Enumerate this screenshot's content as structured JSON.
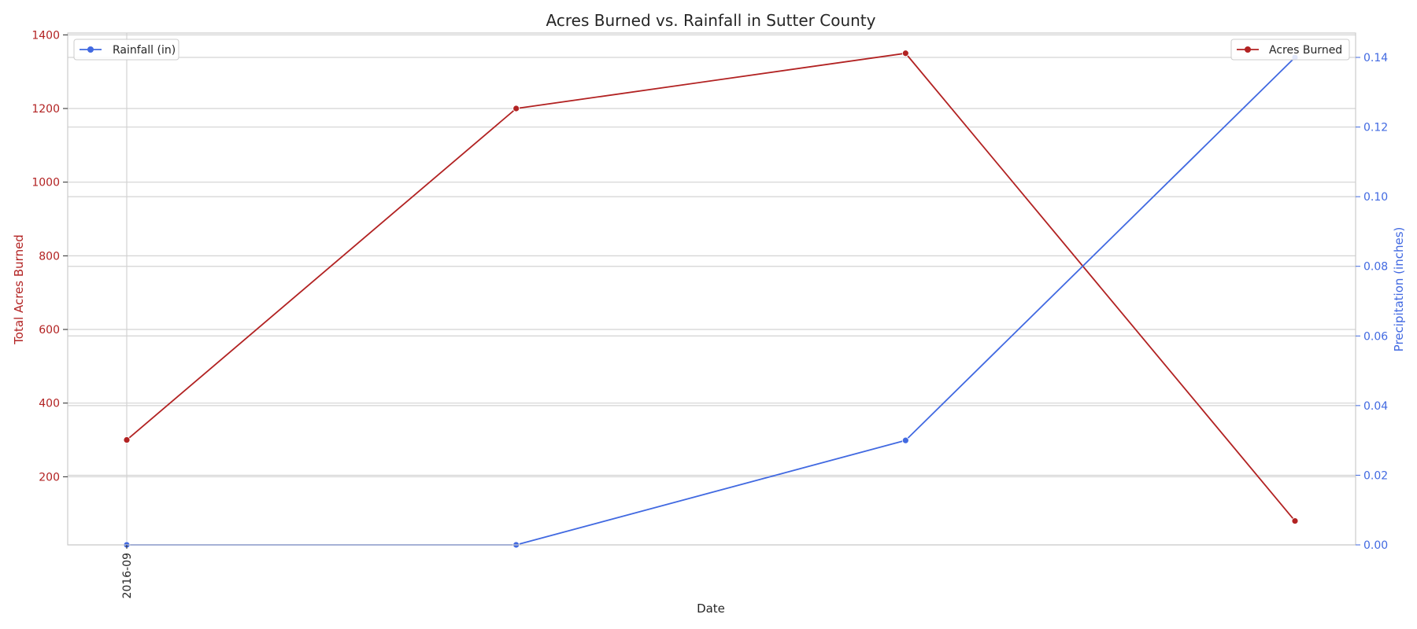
{
  "chart_data": {
    "type": "line",
    "title": "Acres Burned vs. Rainfall in Sutter County",
    "xlabel": "Date",
    "x_tick_labels": [
      "2016-09"
    ],
    "x": [
      0,
      1,
      2,
      3
    ],
    "left_axis": {
      "label": "Total Acres Burned",
      "color": "#b22222",
      "ylim": [
        15,
        1405
      ],
      "ticks": [
        200,
        400,
        600,
        800,
        1000,
        1200,
        1400
      ]
    },
    "right_axis": {
      "label": "Precipitation (inches)",
      "color": "#4169e1",
      "ylim": [
        0,
        0.147
      ],
      "ticks": [
        0.0,
        0.02,
        0.04,
        0.06,
        0.08,
        0.1,
        0.12,
        0.14
      ],
      "tick_labels": [
        "0.00",
        "0.02",
        "0.04",
        "0.06",
        "0.08",
        "0.10",
        "0.12",
        "0.14"
      ]
    },
    "series": [
      {
        "name": "Acres Burned",
        "axis": "left",
        "color": "#b22222",
        "values": [
          300,
          1200,
          1350,
          80
        ]
      },
      {
        "name": "Rainfall (in)",
        "axis": "right",
        "color": "#4169e1",
        "values": [
          0.0,
          0.0,
          0.03,
          0.14
        ]
      }
    ],
    "legends": [
      {
        "series": "Rainfall (in)",
        "placement": "top-left"
      },
      {
        "series": "Acres Burned",
        "placement": "top-right"
      }
    ],
    "grid": true
  }
}
